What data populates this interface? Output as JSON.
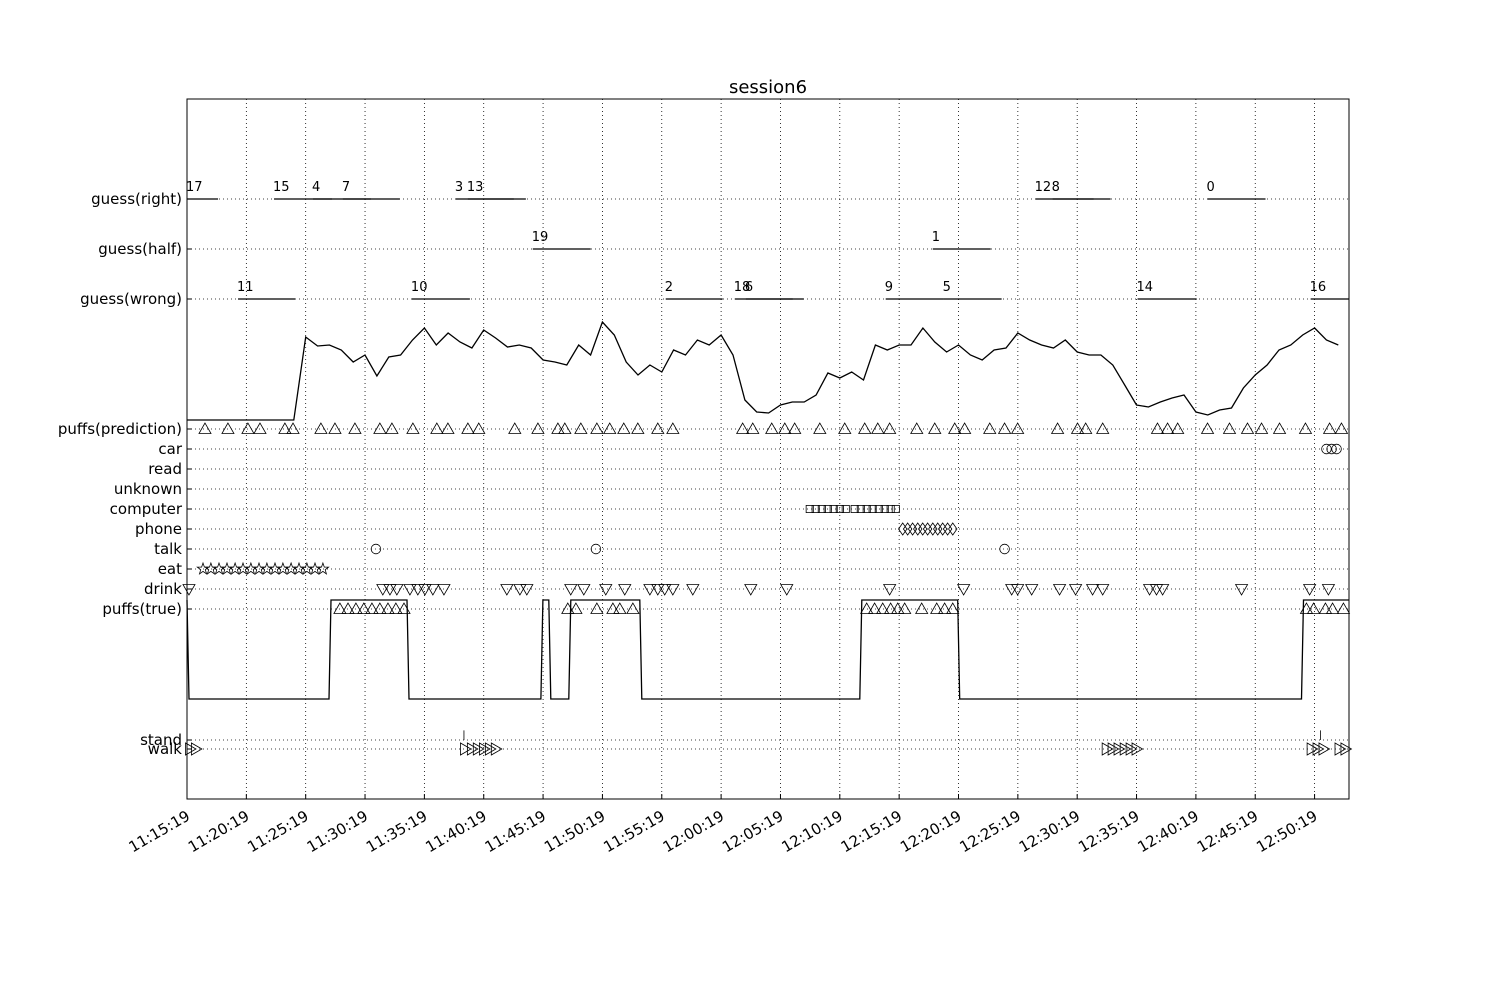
{
  "chart_data": {
    "type": "timeline",
    "title": "session6",
    "xlim": [
      "11:15:19",
      "12:53:13"
    ],
    "xticks": [
      "11:15:19",
      "11:20:19",
      "11:25:19",
      "11:30:19",
      "11:35:19",
      "11:40:19",
      "11:45:19",
      "11:50:19",
      "11:55:19",
      "12:00:19",
      "12:05:19",
      "12:10:19",
      "12:15:19",
      "12:20:19",
      "12:25:19",
      "12:30:19",
      "12:35:19",
      "12:40:19",
      "12:45:19",
      "12:50:19"
    ],
    "ylim": [
      0,
      70
    ],
    "yticks": [
      {
        "value": 5,
        "label": "walk"
      },
      {
        "value": 5.9,
        "label": "stand"
      },
      {
        "value": 19,
        "label": "puffs(true)"
      },
      {
        "value": 21,
        "label": "drink"
      },
      {
        "value": 23,
        "label": "eat"
      },
      {
        "value": 25,
        "label": "talk"
      },
      {
        "value": 27,
        "label": "phone"
      },
      {
        "value": 29,
        "label": "computer"
      },
      {
        "value": 31,
        "label": "unknown"
      },
      {
        "value": 33,
        "label": "read"
      },
      {
        "value": 35,
        "label": "car"
      },
      {
        "value": 37,
        "label": "puffs(prediction)"
      },
      {
        "value": 50,
        "label": "guess(wrong)"
      },
      {
        "value": 55,
        "label": "guess(half)"
      },
      {
        "value": 60,
        "label": "guess(right)"
      }
    ],
    "grid": true,
    "series": [
      {
        "type": "segments",
        "color": "#000000",
        "y": 60,
        "segments": [
          {
            "label": "17",
            "start": "11:15:19",
            "end": "11:17:56"
          },
          {
            "label": "15",
            "start": "11:22:39",
            "end": "11:27:32"
          },
          {
            "label": "4",
            "start": "11:25:56",
            "end": "11:30:49"
          },
          {
            "label": "7",
            "start": "11:28:27",
            "end": "11:33:15"
          },
          {
            "label": "3",
            "start": "11:37:58",
            "end": "11:42:51"
          },
          {
            "label": "13",
            "start": "11:38:59",
            "end": "11:43:52"
          },
          {
            "label": "12",
            "start": "12:26:49",
            "end": "12:31:42"
          },
          {
            "label": "8",
            "start": "12:28:15",
            "end": "12:33:08"
          },
          {
            "label": "0",
            "start": "12:41:18",
            "end": "12:46:11"
          }
        ]
      },
      {
        "type": "segments",
        "color": "#000000",
        "y": 55,
        "segments": [
          {
            "label": "19",
            "start": "11:44:27",
            "end": "11:49:20"
          },
          {
            "label": "1",
            "start": "12:18:09",
            "end": "12:23:02"
          }
        ]
      },
      {
        "type": "segments",
        "color": "#000000",
        "y": 50,
        "segments": [
          {
            "label": "11",
            "start": "11:19:37",
            "end": "11:24:25"
          },
          {
            "label": "10",
            "start": "11:34:16",
            "end": "11:39:09"
          },
          {
            "label": "2",
            "start": "11:55:39",
            "end": "12:00:27"
          },
          {
            "label": "18",
            "start": "12:01:28",
            "end": "12:06:21"
          },
          {
            "label": "6",
            "start": "12:02:24",
            "end": "12:07:17"
          },
          {
            "label": "9",
            "start": "12:14:11",
            "end": "12:19:04"
          },
          {
            "label": "5",
            "start": "12:19:04",
            "end": "12:23:57"
          },
          {
            "label": "14",
            "start": "12:35:24",
            "end": "12:40:23"
          },
          {
            "label": "16",
            "start": "12:49:59",
            "end": "12:53:11"
          }
        ]
      },
      {
        "type": "line",
        "color": "#000000",
        "x": [
          "11:15:19",
          "11:16:19",
          "11:17:19",
          "11:18:19",
          "11:19:19",
          "11:20:19",
          "11:21:19",
          "11:22:19",
          "11:23:19",
          "11:24:19",
          "11:25:19",
          "11:26:19",
          "11:27:19",
          "11:28:19",
          "11:29:19",
          "11:30:19",
          "11:31:19",
          "11:32:19",
          "11:33:19",
          "11:34:19",
          "11:35:19",
          "11:36:19",
          "11:37:19",
          "11:38:19",
          "11:39:19",
          "11:40:19",
          "11:41:19",
          "11:42:19",
          "11:43:19",
          "11:44:19",
          "11:45:19",
          "11:46:19",
          "11:47:19",
          "11:48:19",
          "11:49:19",
          "11:50:19",
          "11:51:19",
          "11:52:19",
          "11:53:19",
          "11:54:19",
          "11:55:19",
          "11:56:19",
          "11:57:19",
          "11:58:19",
          "11:59:19",
          "12:00:19",
          "12:01:19",
          "12:02:19",
          "12:03:19",
          "12:04:19",
          "12:05:19",
          "12:06:19",
          "12:07:19",
          "12:08:19",
          "12:09:19",
          "12:10:19",
          "12:11:19",
          "12:12:19",
          "12:13:19",
          "12:14:19",
          "12:15:19",
          "12:16:19",
          "12:17:19",
          "12:18:19",
          "12:19:19",
          "12:20:19",
          "12:21:19",
          "12:22:19",
          "12:23:19",
          "12:24:19",
          "12:25:19",
          "12:26:19",
          "12:27:19",
          "12:28:19",
          "12:29:19",
          "12:30:19",
          "12:31:19",
          "12:32:19",
          "12:33:19",
          "12:34:19",
          "12:35:19",
          "12:36:19",
          "12:37:19",
          "12:38:19",
          "12:39:19",
          "12:40:19",
          "12:41:19",
          "12:42:19",
          "12:43:19",
          "12:44:19",
          "12:45:19",
          "12:46:19",
          "12:47:19",
          "12:48:19",
          "12:49:19",
          "12:50:19",
          "12:51:19",
          "12:52:19"
        ],
        "values": [
          37.9,
          37.9,
          37.9,
          37.9,
          37.9,
          37.9,
          37.9,
          37.9,
          37.9,
          37.9,
          46.2,
          45.3,
          45.4,
          44.9,
          43.7,
          44.4,
          42.3,
          44.2,
          44.4,
          45.9,
          47.1,
          45.4,
          46.6,
          45.7,
          45.1,
          46.9,
          46.1,
          45.2,
          45.4,
          45.1,
          43.9,
          43.7,
          43.4,
          45.4,
          44.4,
          47.7,
          46.4,
          43.7,
          42.4,
          43.4,
          42.7,
          44.9,
          44.4,
          45.9,
          45.4,
          46.4,
          44.4,
          39.9,
          38.7,
          38.6,
          39.4,
          39.7,
          39.7,
          40.4,
          42.6,
          42.1,
          42.7,
          41.9,
          45.4,
          44.9,
          45.4,
          45.4,
          47.1,
          45.7,
          44.7,
          45.4,
          44.4,
          43.9,
          44.9,
          45.1,
          46.6,
          45.9,
          45.4,
          45.1,
          45.9,
          44.7,
          44.4,
          44.4,
          43.4,
          41.4,
          39.4,
          39.2,
          39.7,
          40.1,
          40.4,
          38.7,
          38.4,
          38.9,
          39.1,
          41.1,
          42.4,
          43.4,
          44.9,
          45.4,
          46.4,
          47.1,
          45.9,
          45.4
        ]
      },
      {
        "type": "scatter",
        "marker": "^",
        "color": "#000000",
        "y": 37,
        "x": [
          "11:16:50",
          "11:18:46",
          "11:20:27",
          "11:21:28",
          "11:23:34",
          "11:24:15",
          "11:26:36",
          "11:27:47",
          "11:29:28",
          "11:31:34",
          "11:32:35",
          "11:34:21",
          "11:36:22",
          "11:37:18",
          "11:38:59",
          "11:39:54",
          "11:42:56",
          "11:44:53",
          "11:46:34",
          "11:47:09",
          "11:48:30",
          "11:49:51",
          "11:50:56",
          "11:52:07",
          "11:53:18",
          "11:54:59",
          "11:56:15",
          "12:02:08",
          "12:02:59",
          "12:04:35",
          "12:05:41",
          "12:06:31",
          "12:08:38",
          "12:10:44",
          "12:12:25",
          "12:13:31",
          "12:14:31",
          "12:16:48",
          "12:18:19",
          "12:20:00",
          "12:20:50",
          "12:22:57",
          "12:24:12",
          "12:25:18",
          "12:28:40",
          "12:30:21",
          "12:31:02",
          "12:32:28",
          "12:37:05",
          "12:37:56",
          "12:38:47",
          "12:41:18",
          "12:43:09",
          "12:44:40",
          "12:45:51",
          "12:47:22",
          "12:49:33",
          "12:51:35",
          "12:52:35"
        ]
      },
      {
        "type": "scatter",
        "marker": "o",
        "color": "#000000",
        "y": 35,
        "x": [
          "12:51:19",
          "12:51:45",
          "12:52:10"
        ]
      },
      {
        "type": "scatter",
        "marker": "s",
        "color": "#000000",
        "y": 29,
        "x": [
          "12:07:47",
          "12:08:17",
          "12:08:48",
          "12:09:18",
          "12:09:48",
          "12:10:19",
          "12:10:49",
          "12:11:34",
          "12:12:05",
          "12:12:35",
          "12:13:05",
          "12:13:36",
          "12:14:06",
          "12:14:36",
          "12:15:02"
        ]
      },
      {
        "type": "scatter",
        "marker": "D",
        "color": "#000000",
        "y": 27,
        "x": [
          "12:15:37",
          "12:16:02",
          "12:16:27",
          "12:16:53",
          "12:17:18",
          "12:17:43",
          "12:18:09",
          "12:18:34",
          "12:18:59",
          "12:19:24",
          "12:19:50"
        ]
      },
      {
        "type": "scatter",
        "marker": "o",
        "color": "#000000",
        "y": 25,
        "x": [
          "11:31:14",
          "11:49:46",
          "12:24:12"
        ]
      },
      {
        "type": "scatter",
        "marker": "*",
        "color": "#000000",
        "y": 23,
        "x": [
          "11:16:40",
          "11:17:20",
          "11:18:01",
          "11:18:41",
          "11:19:22",
          "11:20:02",
          "11:20:42",
          "11:21:23",
          "11:22:03",
          "11:22:44",
          "11:23:24",
          "11:24:05",
          "11:24:45",
          "11:25:25",
          "11:26:06",
          "11:26:46"
        ]
      },
      {
        "type": "scatter",
        "marker": "v",
        "color": "#000000",
        "y": 21,
        "x": [
          "11:15:29",
          "11:31:49",
          "11:32:25",
          "11:33:00",
          "11:34:06",
          "11:34:46",
          "11:35:22",
          "11:36:02",
          "11:36:58",
          "11:42:16",
          "11:43:22",
          "11:43:57",
          "11:47:39",
          "11:48:45",
          "11:50:36",
          "11:52:12",
          "11:54:19",
          "11:54:59",
          "11:55:34",
          "11:56:15",
          "11:57:56",
          "12:02:49",
          "12:05:51",
          "12:14:31",
          "12:20:45",
          "12:24:48",
          "12:25:18",
          "12:26:29",
          "12:28:50",
          "12:30:11",
          "12:31:37",
          "12:32:28",
          "12:36:25",
          "12:37:00",
          "12:37:31",
          "12:44:10",
          "12:49:54",
          "12:51:29"
        ]
      },
      {
        "type": "line",
        "color": "#000000",
        "x": [
          "11:15:19",
          "11:15:29",
          "11:27:17",
          "11:27:27",
          "11:33:51",
          "11:34:01",
          "11:45:08",
          "11:45:18",
          "11:45:48",
          "11:45:58",
          "11:47:29",
          "11:47:39",
          "11:53:28",
          "11:53:38",
          "12:12:00",
          "12:12:10",
          "12:20:15",
          "12:20:25",
          "12:49:13",
          "12:49:23",
          "12:53:11"
        ],
        "values": [
          19.9,
          10,
          10,
          19.9,
          19.9,
          10,
          10,
          19.9,
          19.9,
          10,
          10,
          19.9,
          19.9,
          10,
          10,
          19.9,
          19.9,
          10,
          10,
          19.9,
          19.9
        ]
      },
      {
        "type": "scatter",
        "marker": "^",
        "color": "#000000",
        "y": 19,
        "x": [
          "11:28:12",
          "11:28:53",
          "11:29:33",
          "11:30:13",
          "11:30:54",
          "11:31:34",
          "11:32:15",
          "11:32:55",
          "11:33:36",
          "11:47:24",
          "11:48:05",
          "11:49:51",
          "11:51:12",
          "11:51:47",
          "11:52:53",
          "12:12:35",
          "12:13:15",
          "12:13:56",
          "12:14:36",
          "12:15:12",
          "12:15:47",
          "12:17:13",
          "12:18:29",
          "12:19:09",
          "12:19:50",
          "12:49:38",
          "12:50:14",
          "12:51:14",
          "12:51:50",
          "12:52:45"
        ]
      },
      {
        "type": "scatter",
        "marker": ">",
        "color": "#000000",
        "y": 5,
        "x": [
          "11:15:34",
          "11:16:04",
          "11:38:44",
          "11:39:19",
          "11:39:49",
          "11:40:20",
          "11:40:50",
          "11:41:20",
          "12:32:48",
          "12:33:18",
          "12:33:48",
          "12:34:19",
          "12:34:49",
          "12:35:19",
          "12:50:04",
          "12:50:34",
          "12:51:04",
          "12:52:25",
          "12:52:55"
        ]
      },
      {
        "type": "scatter",
        "marker": "|",
        "color": "#000000",
        "y": 5.9,
        "x": [
          "11:38:39",
          "12:50:49"
        ]
      }
    ]
  }
}
